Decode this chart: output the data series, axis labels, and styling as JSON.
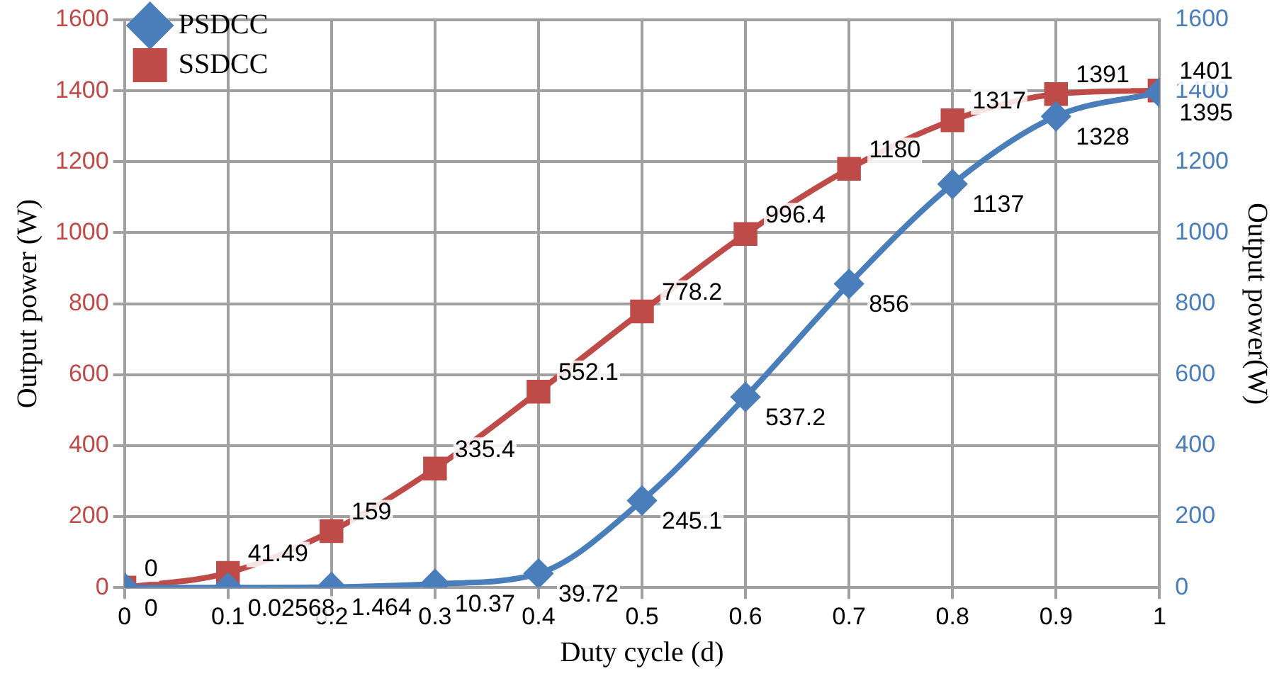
{
  "chart_data": {
    "type": "line",
    "xlabel": "Duty cycle (d)",
    "ylabel": "Output power (W)",
    "y2label": "Output power(W)",
    "x": [
      0,
      0.1,
      0.2,
      0.3,
      0.4,
      0.5,
      0.6,
      0.7,
      0.8,
      0.9,
      1
    ],
    "series": [
      {
        "name": "PSDCC",
        "color": "#4a7ebb",
        "axis": "y2",
        "marker": "diamond",
        "values": [
          0,
          0.02568,
          1.464,
          10.37,
          39.72,
          245.1,
          537.2,
          856,
          1137,
          1328,
          1395
        ]
      },
      {
        "name": "SSDCC",
        "color": "#be4b48",
        "marker": "square",
        "values": [
          0,
          41.49,
          159,
          335.4,
          552.1,
          778.2,
          996.4,
          1180,
          1317,
          1391,
          1401
        ]
      }
    ],
    "xlim": [
      0,
      1
    ],
    "xticks": [
      0,
      0.1,
      0.2,
      0.3,
      0.4,
      0.5,
      0.6,
      0.7,
      0.8,
      0.9,
      1
    ],
    "ylim": [
      0,
      1600
    ],
    "yticks": [
      0,
      200,
      400,
      600,
      800,
      1000,
      1200,
      1400,
      1600
    ],
    "y2lim": [
      0,
      1600
    ],
    "y2ticks": [
      0,
      200,
      400,
      600,
      800,
      1000,
      1200,
      1400,
      1600
    ],
    "grid": true,
    "legend": "top left",
    "data_labels": true,
    "line_style": "solid"
  }
}
